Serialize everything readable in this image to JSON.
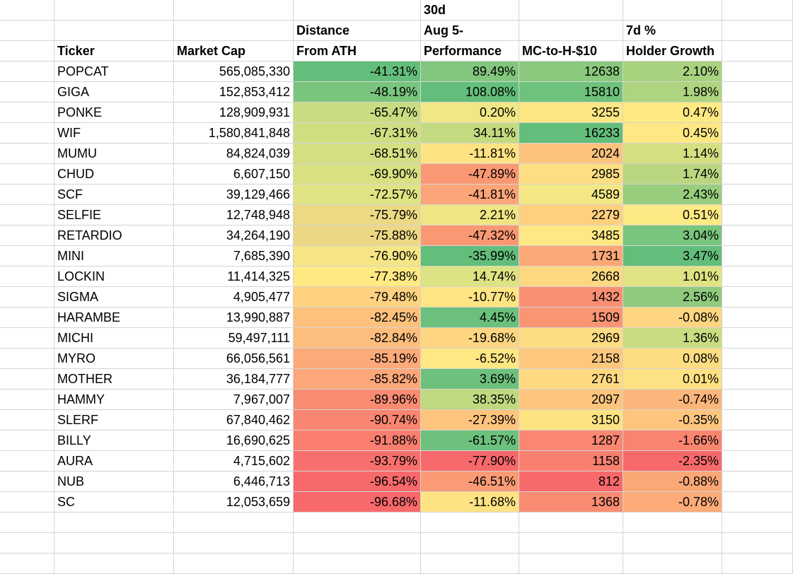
{
  "headers": {
    "row1": [
      "",
      "",
      "",
      "30d",
      "",
      "",
      ""
    ],
    "row2": [
      "",
      "",
      "Distance",
      "Aug 5-",
      "",
      "7d %",
      ""
    ],
    "row3": [
      "Ticker",
      "Market Cap",
      "From ATH",
      "Performance",
      "MC-to-H-$10",
      "Holder Growth",
      ""
    ]
  },
  "rows": [
    {
      "ticker": "POPCAT",
      "mcap": "565,085,330",
      "ath": "-41.31%",
      "perf": "89.49%",
      "mch": "12638",
      "holder": "2.10%"
    },
    {
      "ticker": "GIGA",
      "mcap": "152,853,412",
      "ath": "-48.19%",
      "perf": "108.08%",
      "mch": "15810",
      "holder": "1.98%"
    },
    {
      "ticker": "PONKE",
      "mcap": "128,909,931",
      "ath": "-65.47%",
      "perf": "0.20%",
      "mch": "3255",
      "holder": "0.47%"
    },
    {
      "ticker": "WIF",
      "mcap": "1,580,841,848",
      "ath": "-67.31%",
      "perf": "34.11%",
      "mch": "16233",
      "holder": "0.45%"
    },
    {
      "ticker": "MUMU",
      "mcap": "84,824,039",
      "ath": "-68.51%",
      "perf": "-11.81%",
      "mch": "2024",
      "holder": "1.14%"
    },
    {
      "ticker": "CHUD",
      "mcap": "6,607,150",
      "ath": "-69.90%",
      "perf": "-47.89%",
      "mch": "2985",
      "holder": "1.74%"
    },
    {
      "ticker": "SCF",
      "mcap": "39,129,466",
      "ath": "-72.57%",
      "perf": "-41.81%",
      "mch": "4589",
      "holder": "2.43%"
    },
    {
      "ticker": "SELFIE",
      "mcap": "12,748,948",
      "ath": "-75.79%",
      "perf": "2.21%",
      "mch": "2279",
      "holder": "0.51%"
    },
    {
      "ticker": "RETARDIO",
      "mcap": "34,264,190",
      "ath": "-75.88%",
      "perf": "-47.32%",
      "mch": "3485",
      "holder": "3.04%"
    },
    {
      "ticker": "MINI",
      "mcap": "7,685,390",
      "ath": "-76.90%",
      "perf": "-35.99%",
      "mch": "1731",
      "holder": "3.47%"
    },
    {
      "ticker": "LOCKIN",
      "mcap": "11,414,325",
      "ath": "-77.38%",
      "perf": "14.74%",
      "mch": "2668",
      "holder": "1.01%"
    },
    {
      "ticker": "SIGMA",
      "mcap": "4,905,477",
      "ath": "-79.48%",
      "perf": "-10.77%",
      "mch": "1432",
      "holder": "2.56%"
    },
    {
      "ticker": "HARAMBE",
      "mcap": "13,990,887",
      "ath": "-82.45%",
      "perf": "4.45%",
      "mch": "1509",
      "holder": "-0.08%"
    },
    {
      "ticker": "MICHI",
      "mcap": "59,497,111",
      "ath": "-82.84%",
      "perf": "-19.68%",
      "mch": "2969",
      "holder": "1.36%"
    },
    {
      "ticker": "MYRO",
      "mcap": "66,056,561",
      "ath": "-85.19%",
      "perf": "-6.52%",
      "mch": "2158",
      "holder": "0.08%"
    },
    {
      "ticker": "MOTHER",
      "mcap": "36,184,777",
      "ath": "-85.82%",
      "perf": "3.69%",
      "mch": "2761",
      "holder": "0.01%"
    },
    {
      "ticker": "HAMMY",
      "mcap": "7,967,007",
      "ath": "-89.96%",
      "perf": "38.35%",
      "mch": "2097",
      "holder": "-0.74%"
    },
    {
      "ticker": "SLERF",
      "mcap": "67,840,462",
      "ath": "-90.74%",
      "perf": "-27.39%",
      "mch": "3150",
      "holder": "-0.35%"
    },
    {
      "ticker": "BILLY",
      "mcap": "16,690,625",
      "ath": "-91.88%",
      "perf": "-61.57%",
      "mch": "1287",
      "holder": "-1.66%"
    },
    {
      "ticker": "AURA",
      "mcap": "4,715,602",
      "ath": "-93.79%",
      "perf": "-77.90%",
      "mch": "1158",
      "holder": "-2.35%"
    },
    {
      "ticker": "NUB",
      "mcap": "6,446,713",
      "ath": "-96.54%",
      "perf": "-46.51%",
      "mch": "812",
      "holder": "-0.88%"
    },
    {
      "ticker": "SC",
      "mcap": "12,053,659",
      "ath": "-96.68%",
      "perf": "-11.68%",
      "mch": "1368",
      "holder": "-0.78%"
    }
  ],
  "colors": {
    "ath": [
      "#63be7b",
      "#7ac57d",
      "#c9dc81",
      "#d0de82",
      "#d3df82",
      "#d8e082",
      "#e0e383",
      "#ecd984",
      "#ecd884",
      "#f5e584",
      "#fee983",
      "#fed280",
      "#fdc17d",
      "#fdbe7d",
      "#fcaa7a",
      "#fba779",
      "#f98b73",
      "#f98671",
      "#f97e6f",
      "#f8706d",
      "#f8696b",
      "#f8696b"
    ],
    "perf": [
      "#82c77d",
      "#63be7b",
      "#f1e784",
      "#c4da81",
      "#ffe383",
      "#fa9874",
      "#fba579",
      "#efe583",
      "#fa9874",
      "#63be7b",
      "#dde283",
      "#ffe483",
      "#6ac07c",
      "#fed580",
      "#ffe784",
      "#6ec17c",
      "#bfd980",
      "#fdc47d",
      "#6cc17c",
      "#f8696b",
      "#fa9b75",
      "#ffe383"
    ],
    "mch": [
      "#8ac97e",
      "#6fc27c",
      "#fee683",
      "#63be7b",
      "#fdc27d",
      "#fede82",
      "#f3e884",
      "#fed07f",
      "#fee883",
      "#fba877",
      "#fed880",
      "#fa8f73",
      "#fa9574",
      "#fedd82",
      "#fdc87e",
      "#fed981",
      "#fdc57e",
      "#fee383",
      "#f98772",
      "#f98070",
      "#f8696b",
      "#f98c73"
    ],
    "holder": [
      "#a9d27f",
      "#aed480",
      "#fee983",
      "#ffe884",
      "#d5df82",
      "#b9d780",
      "#99cd7e",
      "#fdea84",
      "#7ac57d",
      "#63be7b",
      "#e0e383",
      "#8fca7e",
      "#fed580",
      "#c8dc81",
      "#fedd82",
      "#fee182",
      "#fcb67b",
      "#fdc57e",
      "#f98571",
      "#f8696b",
      "#fba877",
      "#fcab79"
    ]
  }
}
